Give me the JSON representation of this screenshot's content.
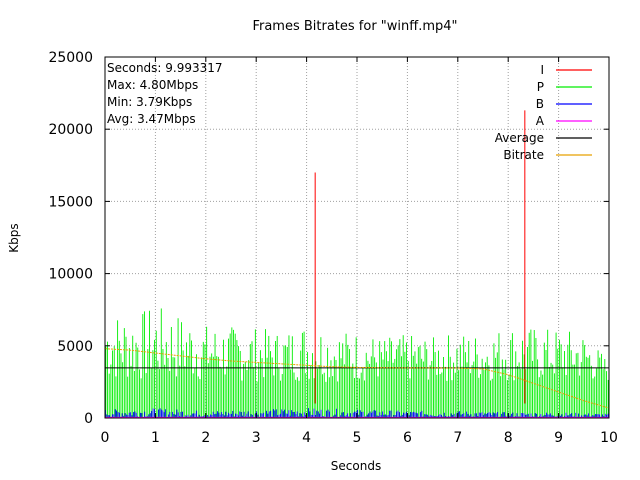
{
  "chart_data": {
    "type": "line",
    "title": "Frames Bitrates for \"winff.mp4\"",
    "xlabel": "Seconds",
    "ylabel": "Kbps",
    "xlim": [
      0,
      10
    ],
    "ylim": [
      0,
      25000
    ],
    "x_ticks": [
      "0",
      "1",
      "2",
      "3",
      "4",
      "5",
      "6",
      "7",
      "8",
      "9",
      "10"
    ],
    "y_ticks": [
      "0",
      "5000",
      "10000",
      "15000",
      "20000",
      "25000"
    ],
    "grid": true,
    "legend_position": "top-right",
    "info_lines": [
      "Seconds: 9.993317",
      "Max: 4.80Mbps",
      "Min: 3.79Kbps",
      "Avg: 3.47Mbps"
    ],
    "series": [
      {
        "name": "I",
        "color": "#ff0000",
        "style": "impulse",
        "x": [
          4.17,
          8.33
        ],
        "y": [
          17000,
          21300
        ]
      },
      {
        "name": "P",
        "color": "#00ee00",
        "style": "impulse",
        "envelope_x": [
          0,
          0.5,
          1,
          1.5,
          2,
          2.5,
          3,
          3.5,
          4,
          4.5,
          5,
          5.5,
          6,
          6.5,
          7,
          7.5,
          8,
          8.5,
          9,
          9.5,
          10
        ],
        "envelope_y": [
          7500,
          7200,
          7800,
          7200,
          6500,
          6400,
          6300,
          6000,
          6700,
          6200,
          6000,
          5600,
          5800,
          5600,
          6000,
          5800,
          6500,
          6300,
          6200,
          6000,
          4000
        ],
        "floor_y": 2500
      },
      {
        "name": "B",
        "color": "#0000ff",
        "style": "impulse",
        "envelope_x": [
          0,
          1,
          2,
          3,
          4,
          5,
          6,
          7,
          8,
          9,
          10
        ],
        "envelope_y": [
          600,
          700,
          500,
          600,
          700,
          600,
          500,
          500,
          400,
          400,
          300
        ]
      },
      {
        "name": "A",
        "color": "#ff00ff",
        "style": "line",
        "x": [
          0,
          10
        ],
        "y": [
          40,
          40
        ]
      },
      {
        "name": "Average",
        "color": "#000000",
        "style": "line",
        "x": [
          0,
          10
        ],
        "y": [
          3470,
          3470
        ]
      },
      {
        "name": "Bitrate",
        "color": "#e6a000",
        "style": "line",
        "x": [
          0,
          0.5,
          1,
          1.5,
          2,
          2.5,
          3,
          3.5,
          4,
          4.5,
          5,
          5.5,
          6,
          6.5,
          7,
          7.5,
          8,
          8.5,
          9,
          9.5,
          9.99
        ],
        "y": [
          4800,
          4700,
          4500,
          4300,
          4100,
          3950,
          3850,
          3750,
          3650,
          3550,
          3500,
          3480,
          3470,
          3470,
          3460,
          3400,
          3000,
          2400,
          1800,
          1200,
          700
        ]
      }
    ]
  }
}
